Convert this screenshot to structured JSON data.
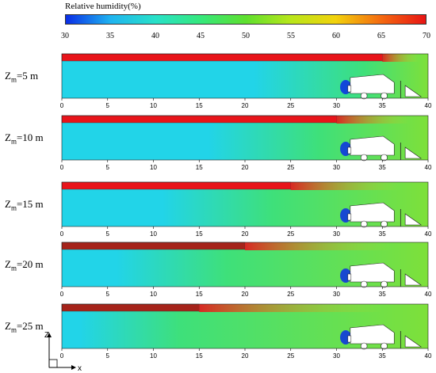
{
  "colorbar": {
    "title": "Relative humidity(%)",
    "min": 30,
    "max": 70,
    "ticks": [
      "30",
      "35",
      "40",
      "45",
      "50",
      "55",
      "60",
      "65",
      "70"
    ],
    "colors": [
      "#0a2de6",
      "#1fb4f0",
      "#28e1c8",
      "#35e87c",
      "#5ee02e",
      "#b8e61a",
      "#f2d20c",
      "#f46a10",
      "#e81414"
    ]
  },
  "panels": [
    {
      "label_main": "Z",
      "label_sub": "m",
      "label_rest": "=5 m",
      "jet_end": 35
    },
    {
      "label_main": "Z",
      "label_sub": "m",
      "label_rest": "=10 m",
      "jet_end": 30
    },
    {
      "label_main": "Z",
      "label_sub": "m",
      "label_rest": "=15 m",
      "jet_end": 25
    },
    {
      "label_main": "Z",
      "label_sub": "m",
      "label_rest": "=20 m",
      "jet_end": 20
    },
    {
      "label_main": "Z",
      "label_sub": "m",
      "label_rest": "=25 m",
      "jet_end": 15
    }
  ],
  "x_axis": {
    "min": 0,
    "max": 40,
    "ticks": [
      "0",
      "5",
      "10",
      "15",
      "20",
      "25",
      "30",
      "35",
      "40"
    ]
  },
  "coord_labels": {
    "z": "Z",
    "x": "x"
  },
  "field_colors": {
    "jet": "#e8141a",
    "jet_dark": "#a5231a",
    "cool": "#22d4e8",
    "mid": "#3ee07a",
    "warm": "#7ee03a",
    "dry": "#0a2de6"
  }
}
